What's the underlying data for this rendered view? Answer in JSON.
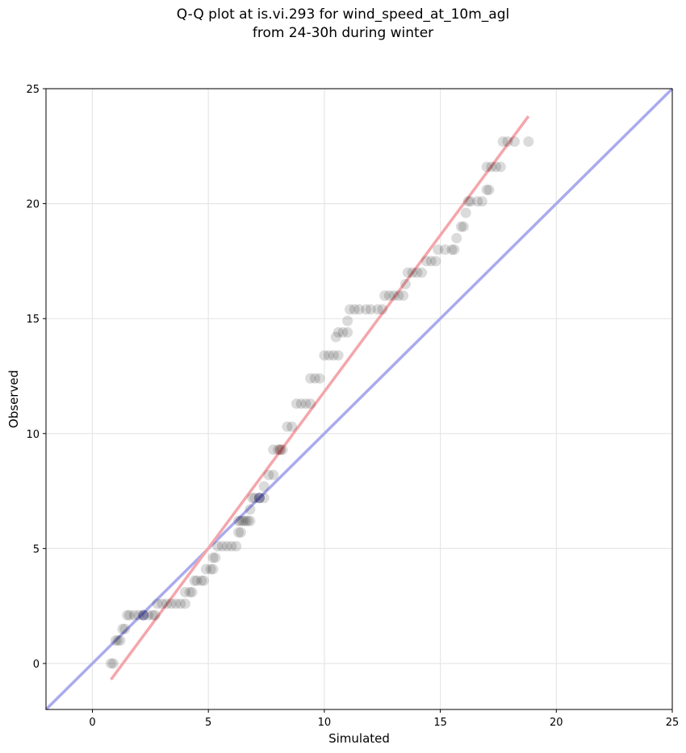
{
  "chart_data": {
    "type": "scatter",
    "title": [
      "Q-Q plot at is.vi.293 for wind_speed_at_10m_agl",
      "from 24-30h during winter"
    ],
    "xlabel": "Simulated",
    "ylabel": "Observed",
    "xlim": [
      -2,
      25
    ],
    "ylim": [
      -2,
      25
    ],
    "xticks": [
      "0",
      "5",
      "10",
      "15",
      "20",
      "25"
    ],
    "yticks": [
      "0",
      "5",
      "10",
      "15",
      "20",
      "25"
    ],
    "grid": true,
    "point_color": "#000000",
    "points": [
      [
        0.8,
        0.0
      ],
      [
        0.9,
        0.0
      ],
      [
        1.0,
        1.0
      ],
      [
        1.1,
        1.0
      ],
      [
        1.2,
        1.0
      ],
      [
        1.3,
        1.5
      ],
      [
        1.4,
        1.5
      ],
      [
        1.5,
        2.1
      ],
      [
        1.6,
        2.1
      ],
      [
        1.8,
        2.1
      ],
      [
        2.0,
        2.1
      ],
      [
        2.2,
        2.1
      ],
      [
        2.4,
        2.1
      ],
      [
        2.6,
        2.1
      ],
      [
        2.7,
        2.1
      ],
      [
        2.8,
        2.6
      ],
      [
        3.0,
        2.6
      ],
      [
        3.2,
        2.6
      ],
      [
        3.4,
        2.6
      ],
      [
        3.6,
        2.6
      ],
      [
        3.8,
        2.6
      ],
      [
        4.0,
        2.6
      ],
      [
        4.0,
        3.1
      ],
      [
        4.2,
        3.1
      ],
      [
        4.3,
        3.1
      ],
      [
        4.4,
        3.6
      ],
      [
        4.5,
        3.6
      ],
      [
        4.7,
        3.6
      ],
      [
        4.8,
        3.6
      ],
      [
        4.9,
        4.1
      ],
      [
        5.1,
        4.1
      ],
      [
        5.2,
        4.1
      ],
      [
        5.2,
        4.6
      ],
      [
        5.3,
        4.6
      ],
      [
        5.4,
        5.1
      ],
      [
        5.6,
        5.1
      ],
      [
        5.8,
        5.1
      ],
      [
        6.0,
        5.1
      ],
      [
        6.2,
        5.1
      ],
      [
        6.3,
        5.7
      ],
      [
        6.4,
        5.7
      ],
      [
        6.3,
        6.2
      ],
      [
        6.4,
        6.2
      ],
      [
        6.5,
        6.2
      ],
      [
        6.6,
        6.2
      ],
      [
        6.7,
        6.2
      ],
      [
        6.8,
        6.2
      ],
      [
        6.8,
        6.7
      ],
      [
        6.9,
        7.2
      ],
      [
        7.0,
        7.2
      ],
      [
        7.2,
        7.2
      ],
      [
        7.4,
        7.2
      ],
      [
        7.4,
        7.7
      ],
      [
        7.6,
        8.2
      ],
      [
        7.8,
        8.2
      ],
      [
        7.8,
        9.3
      ],
      [
        8.0,
        9.3
      ],
      [
        8.2,
        9.3
      ],
      [
        8.4,
        10.3
      ],
      [
        8.6,
        10.3
      ],
      [
        8.8,
        11.3
      ],
      [
        9.0,
        11.3
      ],
      [
        9.2,
        11.3
      ],
      [
        9.4,
        11.3
      ],
      [
        9.4,
        12.4
      ],
      [
        9.6,
        12.4
      ],
      [
        9.8,
        12.4
      ],
      [
        10.0,
        13.4
      ],
      [
        10.2,
        13.4
      ],
      [
        10.4,
        13.4
      ],
      [
        10.6,
        13.4
      ],
      [
        10.5,
        14.2
      ],
      [
        10.6,
        14.4
      ],
      [
        10.8,
        14.4
      ],
      [
        11.0,
        14.4
      ],
      [
        11.0,
        14.9
      ],
      [
        11.1,
        15.4
      ],
      [
        11.3,
        15.4
      ],
      [
        11.5,
        15.4
      ],
      [
        11.8,
        15.4
      ],
      [
        12.0,
        15.4
      ],
      [
        12.3,
        15.4
      ],
      [
        12.5,
        15.4
      ],
      [
        12.6,
        16.0
      ],
      [
        12.8,
        16.0
      ],
      [
        13.0,
        16.0
      ],
      [
        13.2,
        16.0
      ],
      [
        13.4,
        16.0
      ],
      [
        13.5,
        16.5
      ],
      [
        13.6,
        17.0
      ],
      [
        13.8,
        17.0
      ],
      [
        14.0,
        17.0
      ],
      [
        14.2,
        17.0
      ],
      [
        14.4,
        17.5
      ],
      [
        14.6,
        17.5
      ],
      [
        14.8,
        17.5
      ],
      [
        14.9,
        18.0
      ],
      [
        15.2,
        18.0
      ],
      [
        15.5,
        18.0
      ],
      [
        15.6,
        18.0
      ],
      [
        15.7,
        18.5
      ],
      [
        15.9,
        19.0
      ],
      [
        16.0,
        19.0
      ],
      [
        16.1,
        19.6
      ],
      [
        16.2,
        20.1
      ],
      [
        16.3,
        20.1
      ],
      [
        16.6,
        20.1
      ],
      [
        16.8,
        20.1
      ],
      [
        17.0,
        20.6
      ],
      [
        17.1,
        20.6
      ],
      [
        17.0,
        21.6
      ],
      [
        17.2,
        21.6
      ],
      [
        17.4,
        21.6
      ],
      [
        17.6,
        21.6
      ],
      [
        17.7,
        22.7
      ],
      [
        17.9,
        22.7
      ],
      [
        18.2,
        22.7
      ],
      [
        18.8,
        22.7
      ]
    ],
    "reference_line": {
      "color": "#aaaaee",
      "from": [
        -2,
        -2
      ],
      "to": [
        25,
        25
      ]
    },
    "fit_line": {
      "color": "#f4a6ab",
      "from": [
        0.8,
        -0.7
      ],
      "to": [
        18.8,
        23.8
      ]
    },
    "highlight_points": [
      {
        "x": 2.2,
        "y": 2.1,
        "color": "#000066"
      },
      {
        "x": 7.2,
        "y": 7.2,
        "color": "#000066"
      },
      {
        "x": 8.1,
        "y": 9.3,
        "color": "#660000"
      }
    ]
  }
}
